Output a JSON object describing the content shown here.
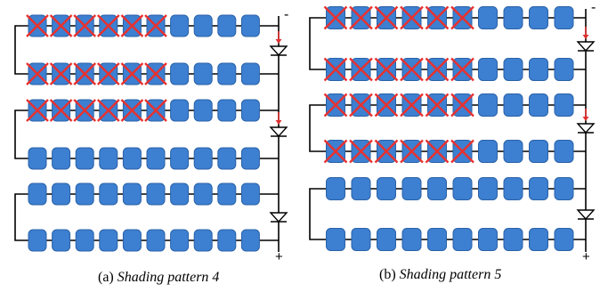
{
  "panels": [
    {
      "id": "a",
      "caption_prefix": "(a) ",
      "caption_title": "Shading pattern 4",
      "terminal_top": "-",
      "terminal_bottom": "+",
      "strings": [
        {
          "cells": 10,
          "shaded": 6
        },
        {
          "cells": 10,
          "shaded": 6
        },
        {
          "cells": 10,
          "shaded": 6
        },
        {
          "cells": 10,
          "shaded": 0
        },
        {
          "cells": 10,
          "shaded": 0
        },
        {
          "cells": 10,
          "shaded": 0
        }
      ],
      "bypass_diodes_active": [
        true,
        true,
        false
      ]
    },
    {
      "id": "b",
      "caption_prefix": "(b) ",
      "caption_title": "Shading pattern 5",
      "terminal_top": "-",
      "terminal_bottom": "+",
      "strings": [
        {
          "cells": 10,
          "shaded": 6
        },
        {
          "cells": 10,
          "shaded": 6
        },
        {
          "cells": 10,
          "shaded": 6
        },
        {
          "cells": 10,
          "shaded": 6
        },
        {
          "cells": 10,
          "shaded": 0
        },
        {
          "cells": 10,
          "shaded": 0
        }
      ],
      "bypass_diodes_active": [
        true,
        true,
        false
      ]
    }
  ],
  "colors": {
    "cell": "#3d7fd0",
    "cell_edge": "#2a62a8",
    "cross": "#e8312f",
    "wire": "#000000",
    "current_arrow": "#e03030"
  }
}
